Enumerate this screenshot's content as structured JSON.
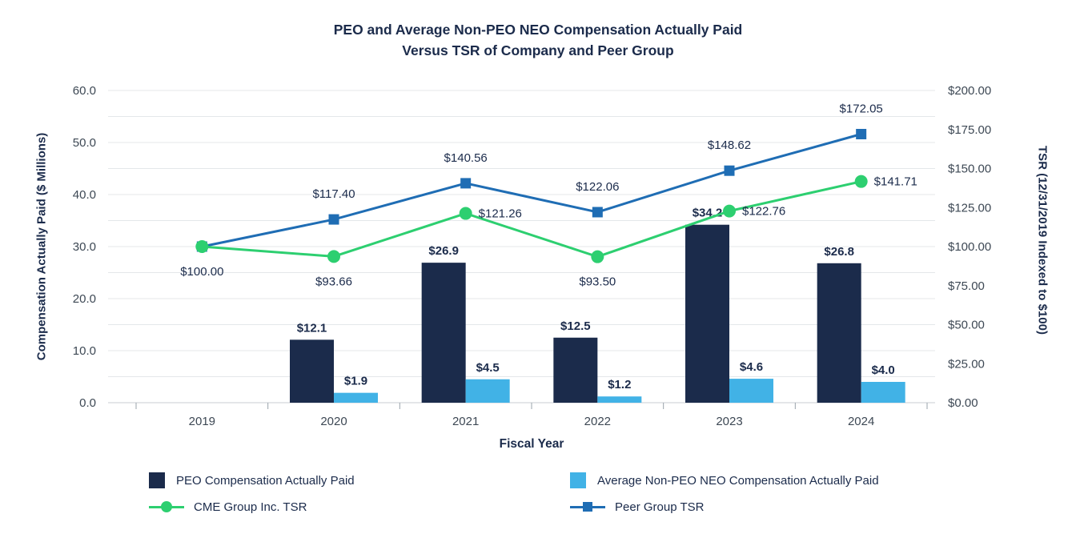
{
  "title": {
    "line1": "PEO and Average Non-PEO NEO Compensation Actually Paid",
    "line2": "Versus TSR of Company and Peer Group"
  },
  "legend": [
    {
      "label": "PEO Compensation Actually Paid",
      "swatch": "square",
      "color_key": "peo_bar"
    },
    {
      "label": "Average Non-PEO NEO Compensation Actually Paid",
      "swatch": "square",
      "color_key": "neo_bar"
    },
    {
      "label": "CME Group Inc. TSR",
      "swatch": "line-circle",
      "color_key": "cme_line"
    },
    {
      "label": "Peer Group TSR",
      "swatch": "line-square",
      "color_key": "peer_line"
    }
  ],
  "colors": {
    "peo_bar": "#1b2b4b",
    "neo_bar": "#41b2e6",
    "cme_line": "#2dcf70",
    "peer_line": "#1f6db4",
    "grid": "#e4e7ea",
    "axis_line": "#c9ced3",
    "tick": "#9aa3ab",
    "label_text": "#1b2b4b",
    "axis_text": "#3d4854"
  },
  "chart_data": {
    "type": "combo",
    "title": "PEO and Average Non-PEO NEO Compensation Actually Paid Versus TSR of Company and Peer Group",
    "grid": "horizontal",
    "legend_position": "bottom",
    "categories": [
      "2019",
      "2020",
      "2021",
      "2022",
      "2023",
      "2024"
    ],
    "x_axis": {
      "label": "Fiscal Year"
    },
    "left_axis": {
      "label": "Compensation Actually Paid ($ Millions)",
      "min": 0,
      "max": 60,
      "tick_step": 10,
      "grid_step": 5,
      "tick_labels": [
        "0.0",
        "10.0",
        "20.0",
        "30.0",
        "40.0",
        "50.0",
        "60.0"
      ]
    },
    "right_axis": {
      "label": "TSR (12/31/2019 Indexed to $100)",
      "min": 0,
      "max": 200,
      "tick_step": 25,
      "tick_labels": [
        "$0.00",
        "$25.00",
        "$50.00",
        "$75.00",
        "$100.00",
        "$125.00",
        "$150.00",
        "$175.00",
        "$200.00"
      ]
    },
    "bar_series": [
      {
        "name": "PEO Compensation Actually Paid",
        "color_key": "peo_bar",
        "values": [
          null,
          12.1,
          26.9,
          12.5,
          34.2,
          26.8
        ],
        "labels": [
          "",
          "$12.1",
          "$26.9",
          "$12.5",
          "$34.2",
          "$26.8"
        ]
      },
      {
        "name": "Average Non-PEO NEO Compensation Actually Paid",
        "color_key": "neo_bar",
        "values": [
          null,
          1.9,
          4.5,
          1.2,
          4.6,
          4.0
        ],
        "labels": [
          "",
          "$1.9",
          "$4.5",
          "$1.2",
          "$4.6",
          "$4.0"
        ]
      }
    ],
    "line_series": [
      {
        "name": "CME Group Inc. TSR",
        "color_key": "cme_line",
        "marker": "circle",
        "values": [
          100.0,
          93.66,
          121.26,
          93.5,
          122.76,
          141.71
        ],
        "labels": [
          "$100.00",
          "$93.66",
          "$121.26",
          "$93.50",
          "$122.76",
          "$141.71"
        ],
        "label_pos": [
          "below",
          "below",
          "right",
          "below",
          "right",
          "right"
        ]
      },
      {
        "name": "Peer Group TSR",
        "color_key": "peer_line",
        "marker": "square",
        "values": [
          100.0,
          117.4,
          140.56,
          122.06,
          148.62,
          172.05
        ],
        "labels": [
          "",
          "$117.40",
          "$140.56",
          "$122.06",
          "$148.62",
          "$172.05"
        ],
        "label_pos": [
          "none",
          "above",
          "above",
          "above",
          "above",
          "above"
        ]
      }
    ]
  }
}
